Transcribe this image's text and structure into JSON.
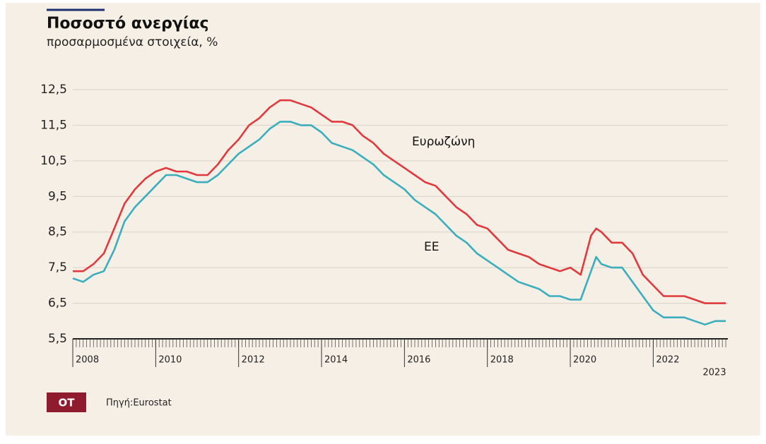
{
  "chart_data": {
    "type": "line",
    "title": "Ποσοστό ανεργίας",
    "subtitle": "προσαρμοσμένα στοιχεία, %",
    "source": "Πηγή:Eurostat",
    "brand": "OT",
    "x": [
      2008,
      2008.25,
      2008.5,
      2008.75,
      2009,
      2009.25,
      2009.5,
      2009.75,
      2010,
      2010.25,
      2010.5,
      2010.75,
      2011,
      2011.25,
      2011.5,
      2011.75,
      2012,
      2012.25,
      2012.5,
      2012.75,
      2013,
      2013.25,
      2013.5,
      2013.75,
      2014,
      2014.25,
      2014.5,
      2014.75,
      2015,
      2015.25,
      2015.5,
      2015.75,
      2016,
      2016.25,
      2016.5,
      2016.75,
      2017,
      2017.25,
      2017.5,
      2017.75,
      2018,
      2018.25,
      2018.5,
      2018.75,
      2019,
      2019.25,
      2019.5,
      2019.75,
      2020,
      2020.25,
      2020.5,
      2020.625,
      2020.75,
      2021,
      2021.25,
      2021.5,
      2021.75,
      2022,
      2022.25,
      2022.5,
      2022.75,
      2023,
      2023.25,
      2023.5,
      2023.75
    ],
    "series": [
      {
        "name": "Ευρωζώνη",
        "color": "#e0393e",
        "values": [
          7.4,
          7.4,
          7.6,
          7.9,
          8.6,
          9.3,
          9.7,
          10.0,
          10.2,
          10.3,
          10.2,
          10.2,
          10.1,
          10.1,
          10.4,
          10.8,
          11.1,
          11.5,
          11.7,
          12.0,
          12.2,
          12.2,
          12.1,
          12.0,
          11.8,
          11.6,
          11.6,
          11.5,
          11.2,
          11.0,
          10.7,
          10.5,
          10.3,
          10.1,
          9.9,
          9.8,
          9.5,
          9.2,
          9.0,
          8.7,
          8.6,
          8.3,
          8.0,
          7.9,
          7.8,
          7.6,
          7.5,
          7.4,
          7.5,
          7.3,
          8.4,
          8.6,
          8.5,
          8.2,
          8.2,
          7.9,
          7.3,
          7.0,
          6.7,
          6.7,
          6.7,
          6.6,
          6.5,
          6.5,
          6.5
        ]
      },
      {
        "name": "ΕΕ",
        "color": "#3aaebd",
        "values": [
          7.2,
          7.1,
          7.3,
          7.4,
          8.0,
          8.8,
          9.2,
          9.5,
          9.8,
          10.1,
          10.1,
          10.0,
          9.9,
          9.9,
          10.1,
          10.4,
          10.7,
          10.9,
          11.1,
          11.4,
          11.6,
          11.6,
          11.5,
          11.5,
          11.3,
          11.0,
          10.9,
          10.8,
          10.6,
          10.4,
          10.1,
          9.9,
          9.7,
          9.4,
          9.2,
          9.0,
          8.7,
          8.4,
          8.2,
          7.9,
          7.7,
          7.5,
          7.3,
          7.1,
          7.0,
          6.9,
          6.7,
          6.7,
          6.6,
          6.6,
          7.4,
          7.8,
          7.6,
          7.5,
          7.5,
          7.1,
          6.7,
          6.3,
          6.1,
          6.1,
          6.1,
          6.0,
          5.9,
          6.0,
          6.0
        ]
      }
    ],
    "xlim": [
      2008,
      2023.8
    ],
    "xticks": [
      2008,
      2010,
      2012,
      2014,
      2016,
      2018,
      2020,
      2022,
      2023
    ],
    "ylim": [
      5.5,
      12.5
    ],
    "yticks": [
      {
        "value": 5.5,
        "label": "5,5"
      },
      {
        "value": 6.5,
        "label": "6,5"
      },
      {
        "value": 7.5,
        "label": "7,5"
      },
      {
        "value": 8.5,
        "label": "8,5"
      },
      {
        "value": 9.5,
        "label": "9,5"
      },
      {
        "value": 10.5,
        "label": "10,5"
      },
      {
        "value": 11.5,
        "label": "11,5"
      },
      {
        "value": 12.5,
        "label": "12,5"
      }
    ],
    "grid": true
  }
}
